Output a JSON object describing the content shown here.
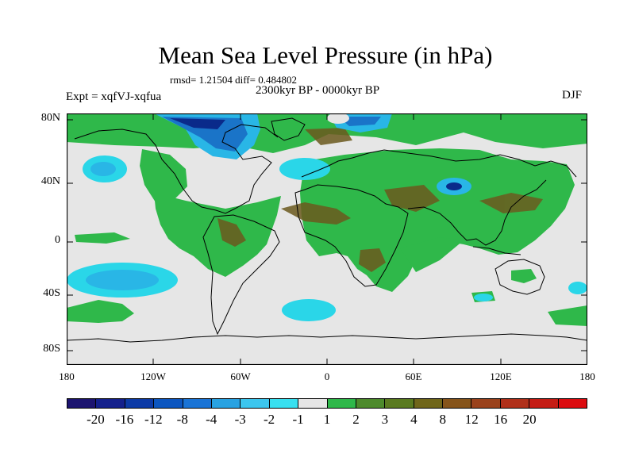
{
  "title": "Mean Sea Level Pressure (in hPa)",
  "stats": "rmsd= 1.21504 diff= 0.484802",
  "period": "2300kyr BP - 0000kyr BP",
  "expt": "Expt = xqfVJ-xqfua",
  "season": "DJF",
  "map": {
    "lat_ticks": [
      "80N",
      "40N",
      "0",
      "40S",
      "80S"
    ],
    "lon_ticks": [
      "180",
      "120W",
      "60W",
      "0",
      "60E",
      "120E",
      "180"
    ],
    "colors": {
      "background": "#e6e6e6",
      "green_light": "#2fb84a",
      "green_dark": "#5a7a2a",
      "olive_brown": "#6b5a1e",
      "cyan": "#2ad6e8",
      "light_blue": "#29b6e6",
      "blue": "#1a74c8",
      "dark_blue": "#0a2a8a",
      "coast": "#000000"
    }
  },
  "colorbar": {
    "colors": [
      "#1c1470",
      "#14208c",
      "#0c3aa6",
      "#0c56c0",
      "#1a74d6",
      "#28a2e2",
      "#3cc6ee",
      "#38e0f0",
      "#e6e6e6",
      "#2fb84a",
      "#4d8a2c",
      "#5a7a20",
      "#70661a",
      "#86541a",
      "#9a421c",
      "#b0301a",
      "#c41c14",
      "#dc0c10"
    ],
    "labels": [
      "-20",
      "-16",
      "-12",
      "-8",
      "-4",
      "-3",
      "-2",
      "-1",
      "1",
      "2",
      "3",
      "4",
      "8",
      "12",
      "16",
      "20"
    ]
  }
}
